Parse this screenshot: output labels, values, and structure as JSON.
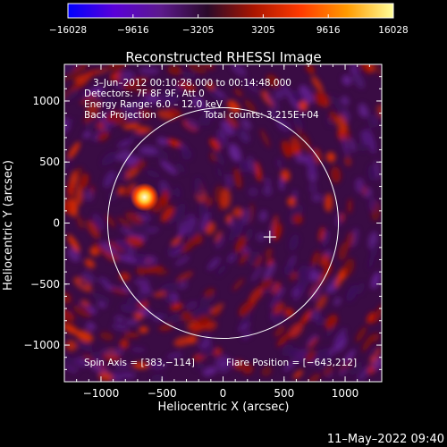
{
  "chart_data": {
    "type": "heatmap",
    "title": "Reconstructed RHESSI Image",
    "xlabel": "Heliocentric X (arcsec)",
    "ylabel": "Heliocentric Y (arcsec)",
    "xlim": [
      -1300,
      1300
    ],
    "ylim": [
      -1300,
      1300
    ],
    "x_ticks": [
      {
        "value": -1000,
        "label": "−1000"
      },
      {
        "value": -500,
        "label": "−500"
      },
      {
        "value": 0,
        "label": "0"
      },
      {
        "value": 500,
        "label": "500"
      },
      {
        "value": 1000,
        "label": "1000"
      }
    ],
    "y_ticks": [
      {
        "value": 1000,
        "label": "1000"
      },
      {
        "value": 500,
        "label": "500"
      },
      {
        "value": 0,
        "label": "0"
      },
      {
        "value": -500,
        "label": "−500"
      },
      {
        "value": -1000,
        "label": "−1000"
      }
    ],
    "colorbar": {
      "min": -16028,
      "max": 16028,
      "ticks": [
        {
          "value": -16028,
          "label": "−16028"
        },
        {
          "value": -9616,
          "label": "−9616"
        },
        {
          "value": -3205,
          "label": "−3205"
        },
        {
          "value": 3205,
          "label": "3205"
        },
        {
          "value": 9616,
          "label": "9616"
        },
        {
          "value": 16028,
          "label": "16028"
        }
      ],
      "colors": [
        "#0000ff",
        "#5a00d8",
        "#5c1a8c",
        "#2a0a2a",
        "#aa1500",
        "#ff3a00",
        "#ff9a00",
        "#ffff9a"
      ]
    },
    "annotations": {
      "time_range": "3–Jun–2012 00:10:28.000 to 00:14:48.000",
      "detectors": "Detectors: 7F 8F 9F, Att 0",
      "energy_range": "Energy Range: 6.0 – 12.0 keV",
      "method": "Back Projection",
      "total_counts": "Total counts: 3.215E+04",
      "spin_axis_label": "Spin Axis = [383,−114]",
      "flare_position_label": "Flare Position = [−643,212]"
    },
    "solar_limb_radius": 945,
    "spin_axis": [
      383,
      -114
    ],
    "flare_source": {
      "x": -643,
      "y": 212
    },
    "timestamp": "11–May–2022 09:40"
  },
  "colors": {
    "background": "#000000",
    "axes": "#ffffff",
    "limb": "#ffffff",
    "image_base": "#3a0c44"
  }
}
